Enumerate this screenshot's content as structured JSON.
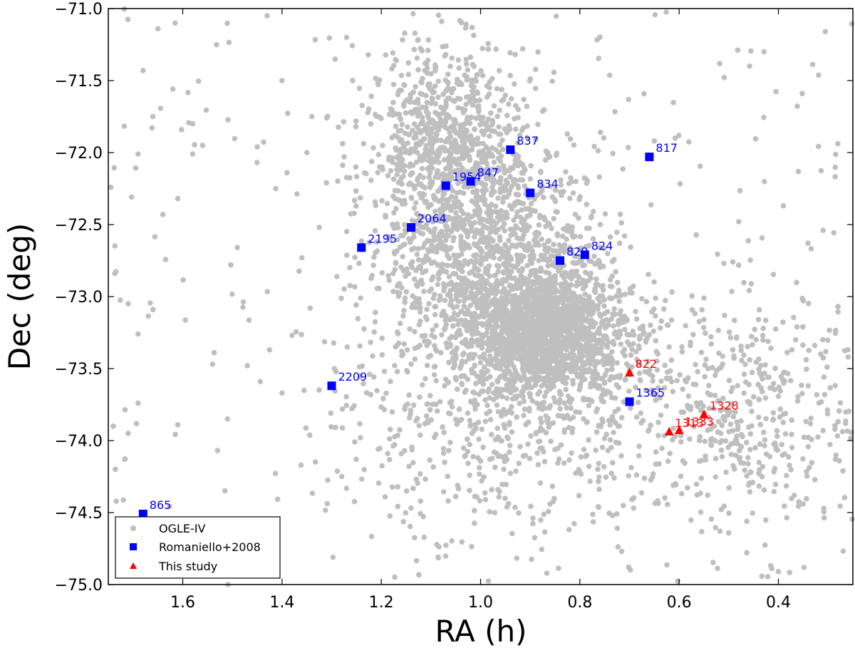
{
  "chart_data": {
    "type": "scatter",
    "title": "",
    "xlabel": "RA (h)",
    "ylabel": "Dec (deg)",
    "xlim": [
      1.75,
      0.25
    ],
    "ylim": [
      -75.0,
      -71.0
    ],
    "x_ticks": [
      1.6,
      1.4,
      1.2,
      1.0,
      0.8,
      0.6,
      0.4
    ],
    "x_tick_labels": [
      "1.6",
      "1.4",
      "1.2",
      "1.0",
      "0.8",
      "0.6",
      "0.4"
    ],
    "y_ticks": [
      -71.0,
      -71.5,
      -72.0,
      -72.5,
      -73.0,
      -73.5,
      -74.0,
      -74.5,
      -75.0
    ],
    "y_tick_labels": [
      "−71.0",
      "−71.5",
      "−72.0",
      "−72.5",
      "−73.0",
      "−73.5",
      "−74.0",
      "−74.5",
      "−75.0"
    ],
    "legend": {
      "position": "bottom-left",
      "entries": [
        "OGLE-IV",
        "Romaniello+2008",
        "This study"
      ]
    },
    "series": [
      {
        "name": "OGLE-IV",
        "marker": "circle",
        "color": "#bfbfbf",
        "description": "thousands of field stars; density concentrated near RA 0.8-0.9 h, Dec -73.2 deg, extending to RA ~1.15 h, Dec -71.5 deg",
        "sample_points": [
          [
            1.68,
            -71.43
          ],
          [
            1.69,
            -72.01
          ],
          [
            1.66,
            -71.75
          ],
          [
            1.65,
            -71.14
          ],
          [
            1.62,
            -71.56
          ],
          [
            1.58,
            -71.8
          ],
          [
            1.58,
            -72.01
          ],
          [
            1.56,
            -71.95
          ],
          [
            1.61,
            -72.32
          ],
          [
            1.64,
            -72.43
          ],
          [
            1.69,
            -73.26
          ],
          [
            1.71,
            -73.05
          ],
          [
            1.66,
            -73.09
          ],
          [
            1.69,
            -73.74
          ],
          [
            1.74,
            -73.9
          ],
          [
            1.71,
            -73.95
          ],
          [
            1.61,
            -73.89
          ],
          [
            1.54,
            -73.47
          ],
          [
            1.51,
            -73.85
          ],
          [
            1.49,
            -72.66
          ],
          [
            1.47,
            -73.48
          ],
          [
            1.53,
            -74.07
          ],
          [
            1.4,
            -71.5
          ],
          [
            1.43,
            -71.05
          ],
          [
            1.34,
            -71.75
          ],
          [
            1.31,
            -71.76
          ],
          [
            1.27,
            -71.2
          ],
          [
            1.35,
            -72.0
          ],
          [
            1.39,
            -72.14
          ],
          [
            1.36,
            -72.73
          ],
          [
            1.38,
            -73.27
          ],
          [
            1.4,
            -73.67
          ],
          [
            1.44,
            -74.75
          ],
          [
            1.47,
            -74.92
          ],
          [
            0.31,
            -72.54
          ],
          [
            0.28,
            -73.07
          ],
          [
            0.26,
            -73.37
          ],
          [
            0.39,
            -72.37
          ],
          [
            0.34,
            -73.62
          ],
          [
            0.31,
            -73.93
          ],
          [
            0.27,
            -74.21
          ],
          [
            0.35,
            -74.44
          ],
          [
            0.4,
            -74.91
          ],
          [
            0.65,
            -71.92
          ],
          [
            0.48,
            -72.48
          ],
          [
            0.51,
            -72.77
          ],
          [
            0.55,
            -73.01
          ],
          [
            0.62,
            -73.35
          ],
          [
            0.44,
            -73.16
          ],
          [
            0.72,
            -72.63
          ]
        ]
      },
      {
        "name": "Romaniello+2008",
        "marker": "square",
        "color": "#0000ff",
        "points": [
          {
            "label": "865",
            "x": 1.68,
            "y": -74.51
          },
          {
            "label": "2209",
            "x": 1.3,
            "y": -73.62
          },
          {
            "label": "2195",
            "x": 1.24,
            "y": -72.66
          },
          {
            "label": "2064",
            "x": 1.14,
            "y": -72.52
          },
          {
            "label": "1954",
            "x": 1.07,
            "y": -72.23
          },
          {
            "label": "847",
            "x": 1.02,
            "y": -72.2
          },
          {
            "label": "837",
            "x": 0.94,
            "y": -71.98
          },
          {
            "label": "834",
            "x": 0.9,
            "y": -72.28
          },
          {
            "label": "829",
            "x": 0.84,
            "y": -72.75
          },
          {
            "label": "824",
            "x": 0.79,
            "y": -72.71
          },
          {
            "label": "817",
            "x": 0.66,
            "y": -72.03
          },
          {
            "label": "1365",
            "x": 0.7,
            "y": -73.73
          }
        ]
      },
      {
        "name": "This study",
        "marker": "triangle",
        "color": "#ff0000",
        "points": [
          {
            "label": "822",
            "x": 0.7,
            "y": -73.53
          },
          {
            "label": "1328",
            "x": 0.55,
            "y": -73.82
          },
          {
            "label": "1333",
            "x": 0.6,
            "y": -73.93
          },
          {
            "label": "1313",
            "x": 0.62,
            "y": -73.94
          }
        ]
      }
    ]
  }
}
